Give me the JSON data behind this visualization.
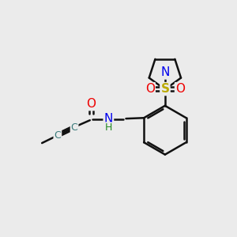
{
  "bg_color": "#ebebeb",
  "atom_colors": {
    "C": "#3a7a7a",
    "N": "#0000ee",
    "O": "#ee0000",
    "S": "#bbaa00",
    "H": "#228822"
  },
  "bond_color": "#111111",
  "bond_width": 1.8
}
